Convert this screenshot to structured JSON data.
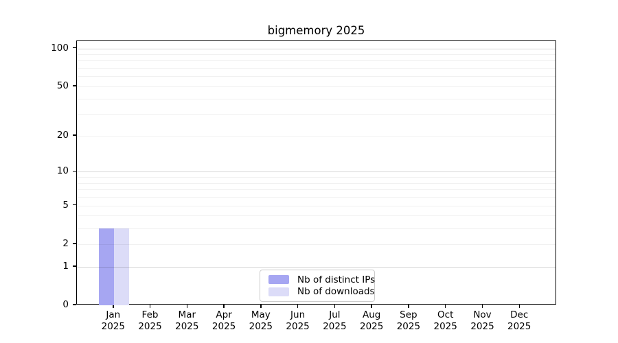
{
  "title": "bigmemory 2025",
  "chart_data": {
    "type": "bar",
    "title": "bigmemory 2025",
    "yscale": "log1p",
    "grid": true,
    "categories": [
      "Jan",
      "Feb",
      "Mar",
      "Apr",
      "May",
      "Jun",
      "Jul",
      "Aug",
      "Sep",
      "Oct",
      "Nov",
      "Dec"
    ],
    "category_year": "2025",
    "series": [
      {
        "name": "Nb of distinct IPs",
        "color": "#a6a6f2",
        "values": [
          3,
          0,
          0,
          0,
          0,
          0,
          0,
          0,
          0,
          0,
          0,
          0
        ]
      },
      {
        "name": "Nb of downloads",
        "color": "#dcdcf8",
        "values": [
          3,
          0,
          0,
          0,
          0,
          0,
          0,
          0,
          0,
          0,
          0,
          0
        ]
      }
    ],
    "yticks": [
      0,
      1,
      2,
      5,
      10,
      20,
      50,
      100
    ],
    "minor_grid_values": [
      2,
      3,
      4,
      5,
      6,
      7,
      8,
      9,
      20,
      30,
      40,
      50,
      60,
      70,
      80,
      90
    ],
    "major_grid_values": [
      1,
      10,
      100
    ],
    "ylim": [
      0,
      114
    ],
    "legend": {
      "position": "lower center"
    }
  }
}
